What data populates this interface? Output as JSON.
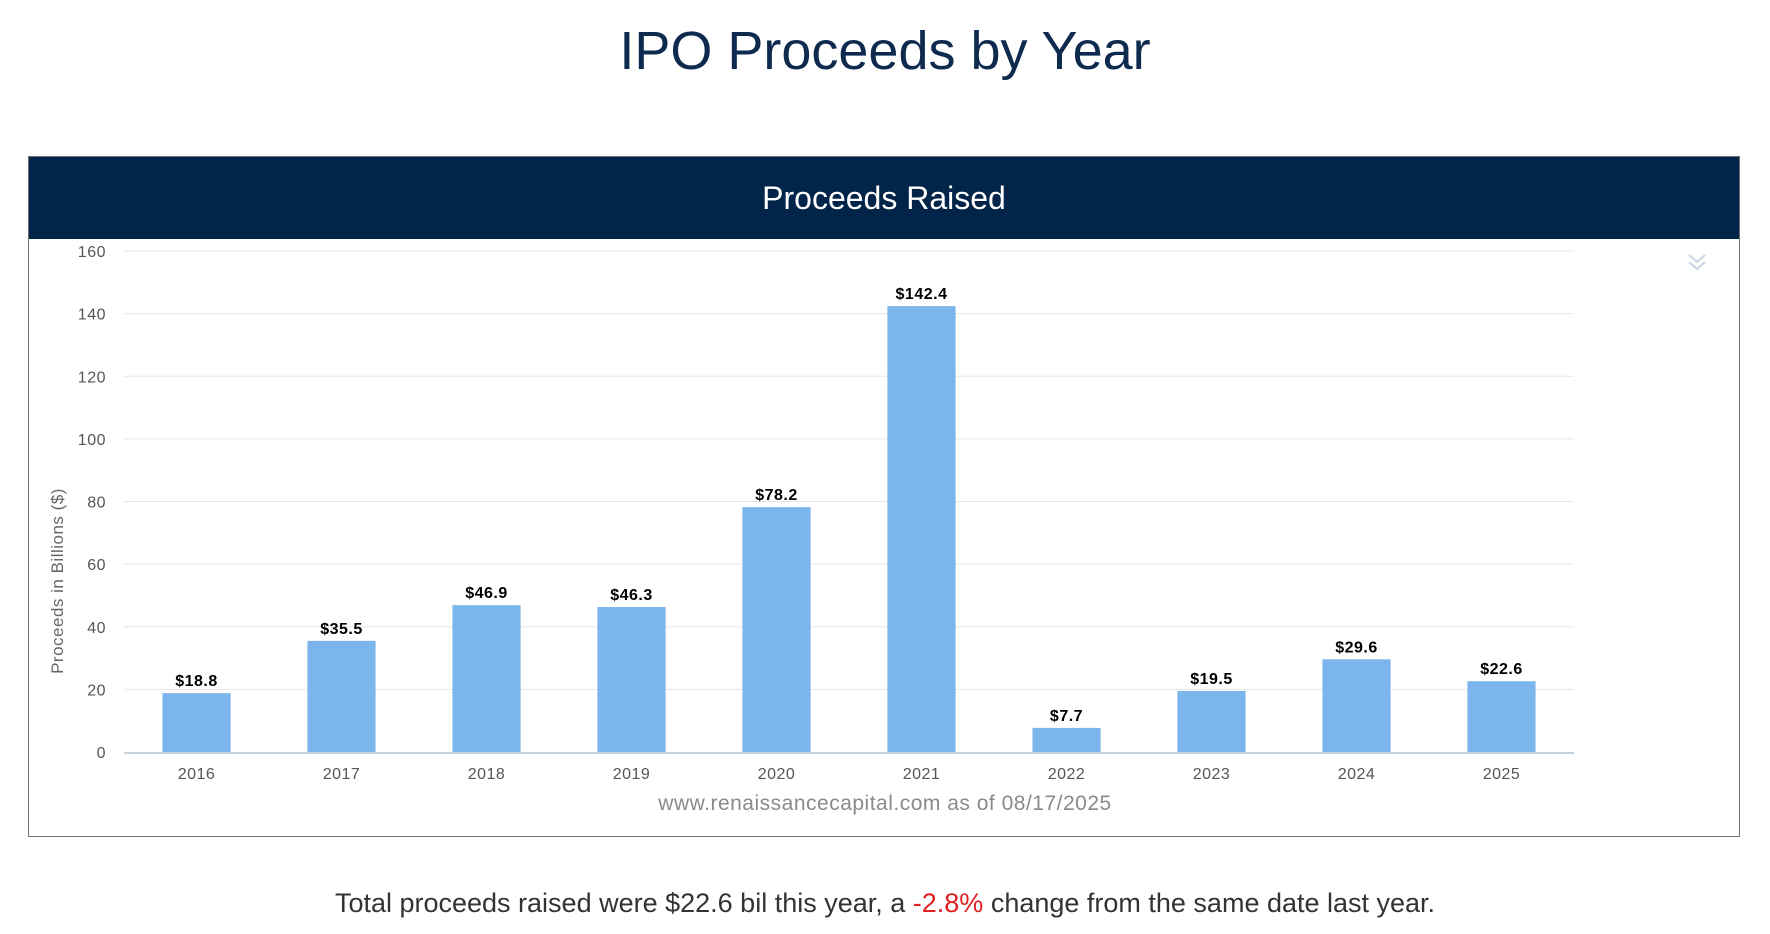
{
  "page": {
    "title": "IPO Proceeds by Year"
  },
  "chart_panel": {
    "header": "Proceeds Raised",
    "menu_icon": "double-chevron-down-icon"
  },
  "colors": {
    "bar": "#7cb5ec",
    "header_bg": "#022448",
    "negative": "#e02020"
  },
  "chart_data": {
    "type": "bar",
    "title": "Proceeds Raised",
    "categories": [
      "2016",
      "2017",
      "2018",
      "2019",
      "2020",
      "2021",
      "2022",
      "2023",
      "2024",
      "2025"
    ],
    "values": [
      18.8,
      35.5,
      46.9,
      46.3,
      78.2,
      142.4,
      7.7,
      19.5,
      29.6,
      22.6
    ],
    "data_labels": [
      "$18.8",
      "$35.5",
      "$46.9",
      "$46.3",
      "$78.2",
      "$142.4",
      "$7.7",
      "$19.5",
      "$29.6",
      "$22.6"
    ],
    "xlabel": "",
    "ylabel": "Proceeds in Billions ($)",
    "ylim": [
      0,
      160
    ],
    "yticks": [
      0,
      20,
      40,
      60,
      80,
      100,
      120,
      140,
      160
    ],
    "grid": true,
    "credit": "www.renaissancecapital.com as of 08/17/2025"
  },
  "summary": {
    "before": "Total proceeds raised were $22.6 bil this year, a ",
    "change": "-2.8%",
    "after": " change from the same date last year."
  }
}
